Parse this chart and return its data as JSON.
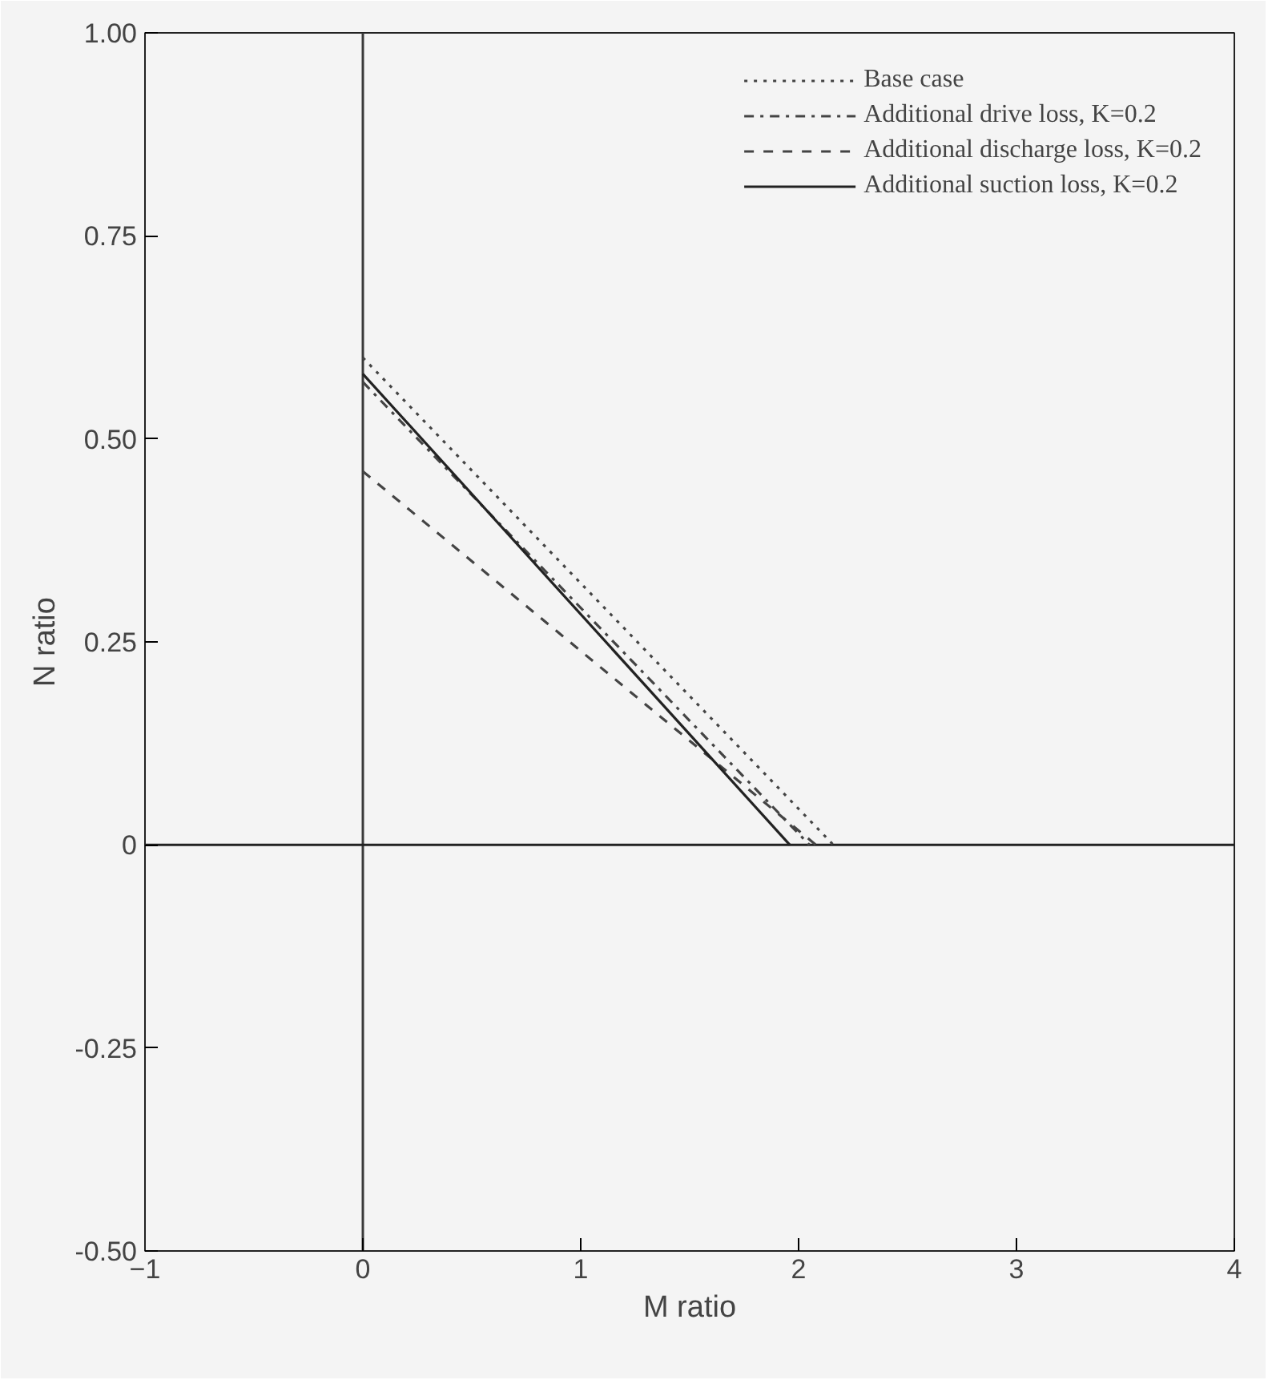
{
  "chart_data": {
    "type": "line",
    "xlabel": "M ratio",
    "ylabel": "N ratio",
    "xlim": [
      -1,
      4
    ],
    "xticks": [
      -1,
      0,
      1,
      2,
      3,
      4
    ],
    "ylim": [
      -0.5,
      1.0
    ],
    "yticks": [
      {
        "value": -0.5,
        "label": "-0.50"
      },
      {
        "value": -0.25,
        "label": "-0.25"
      },
      0,
      {
        "value": 0.25,
        "label": "0.25"
      },
      {
        "value": 0.5,
        "label": "0.50"
      },
      {
        "value": 0.75,
        "label": "0.75"
      },
      {
        "value": 1.0,
        "label": "1.00"
      }
    ],
    "grid": false,
    "legend": "top right",
    "marker": "none",
    "ref_lines": [
      {
        "axis": "x",
        "value": 0,
        "color": "#3a3a3a",
        "line_style": "solid"
      },
      {
        "axis": "y",
        "value": 0,
        "color": "#222222",
        "line_style": "solid"
      }
    ],
    "series": [
      {
        "name": "Base case",
        "color": "#444444",
        "line_style": "dotted",
        "x": [
          0,
          2.16
        ],
        "values": [
          0.6,
          0
        ]
      },
      {
        "name": "Additional drive loss, K=0.2",
        "color": "#444444",
        "line_style": "dashdot",
        "x": [
          0,
          2.05
        ],
        "values": [
          0.57,
          0
        ]
      },
      {
        "name": "Additional discharge loss, K=0.2",
        "color": "#444444",
        "line_style": "dashed",
        "x": [
          0,
          2.08
        ],
        "values": [
          0.46,
          0
        ]
      },
      {
        "name": "Additional suction loss, K=0.2",
        "color": "#222222",
        "line_style": "solid",
        "x": [
          0,
          1.96
        ],
        "values": [
          0.58,
          0
        ]
      }
    ]
  }
}
